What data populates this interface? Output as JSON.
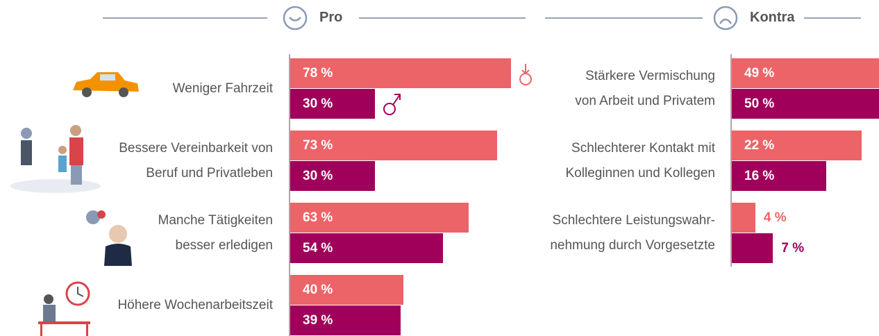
{
  "chart_data": [
    {
      "type": "bar",
      "title": "Pro",
      "categories": [
        "Weniger Fahrzeit",
        "Bessere Vereinbarkeit von\nBeruf und Privatleben",
        "Manche Tätigkeiten\nbesser erledigen",
        "Höhere Wochenarbeitszeit"
      ],
      "series": [
        {
          "color": "#ec6468",
          "values": [
            78,
            73,
            63,
            40
          ],
          "value_labels": [
            "78 %",
            "73 %",
            "63 %",
            "40 %"
          ]
        },
        {
          "color": "#a0005a",
          "values": [
            30,
            30,
            54,
            39
          ],
          "value_labels": [
            "30 %",
            "30 %",
            "54 %",
            "39 %"
          ]
        }
      ],
      "xlim": [
        0,
        100
      ]
    },
    {
      "type": "bar",
      "title": "Kontra",
      "categories": [
        "Stärkere Vermischung\nvon Arbeit und Privatem",
        "Schlechterer Kontakt mit\nKolleginnen und Kollegen",
        "Schlechtere Leistungswahr-\nnehmung durch Vorgesetzte"
      ],
      "series": [
        {
          "color": "#ec6468",
          "values": [
            49,
            22,
            4
          ],
          "value_labels": [
            "49 %",
            "22 %",
            "4 %"
          ]
        },
        {
          "color": "#a0005a",
          "values": [
            50,
            16,
            7
          ],
          "value_labels": [
            "50 %",
            "16 %",
            "7 %"
          ]
        }
      ],
      "xlim": [
        0,
        50
      ]
    }
  ]
}
